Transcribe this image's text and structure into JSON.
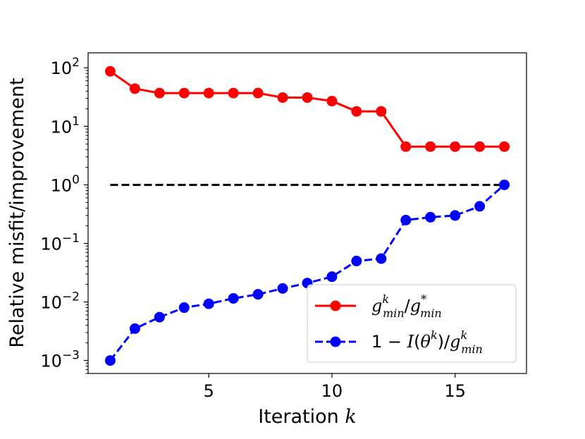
{
  "chart_data": {
    "type": "line",
    "xlabel": "Iteration",
    "xlabel_var": "k",
    "ylabel": "Relative misfit/improvement",
    "yscale": "log",
    "xlim": [
      0.1,
      17.9
    ],
    "ylim": [
      0.0006,
      180
    ],
    "xticks": [
      5,
      10,
      15
    ],
    "xtick_labels": [
      "5",
      "10",
      "15"
    ],
    "yticks": [
      0.001,
      0.01,
      0.1,
      1,
      10,
      100
    ],
    "ytick_labels": [
      {
        "base": "10",
        "exp": "−3"
      },
      {
        "base": "10",
        "exp": "−2"
      },
      {
        "base": "10",
        "exp": "−1"
      },
      {
        "base": "10",
        "exp": "0"
      },
      {
        "base": "10",
        "exp": "1"
      },
      {
        "base": "10",
        "exp": "2"
      }
    ],
    "reference_line": {
      "y": 1,
      "x_range": [
        1,
        17
      ],
      "color": "#000000",
      "style": "dashed"
    },
    "x": [
      1,
      2,
      3,
      4,
      5,
      6,
      7,
      8,
      9,
      10,
      11,
      12,
      13,
      14,
      15,
      16,
      17
    ],
    "series": [
      {
        "name": "g_min^k / g_min^*",
        "color": "#ff0000",
        "style": "solid",
        "values": [
          87,
          44,
          37,
          37,
          37,
          37,
          37,
          31,
          31,
          27,
          18,
          18,
          4.5,
          4.5,
          4.5,
          4.5,
          4.5
        ]
      },
      {
        "name": "1 − I(θ^k) / g_min^k",
        "color": "#0000ff",
        "style": "dashed",
        "values": [
          0.001,
          0.0035,
          0.0055,
          0.008,
          0.0093,
          0.0115,
          0.0135,
          0.017,
          0.021,
          0.027,
          0.05,
          0.055,
          0.25,
          0.28,
          0.3,
          0.43,
          1.0
        ]
      }
    ],
    "legend": {
      "position": "lower-right",
      "entries": [
        {
          "g": "g",
          "sup1": "k",
          "sub1": "min",
          "slash": "/",
          "g2": "g",
          "sup2": "*",
          "sub2": "min"
        },
        {
          "prefix": "1 − ",
          "I": "I",
          "paren_open": "(",
          "theta": "θ",
          "sup_theta": "k",
          "paren_close": ")",
          "slash": "/",
          "g": "g",
          "sup": "k",
          "sub": "min"
        }
      ]
    }
  }
}
